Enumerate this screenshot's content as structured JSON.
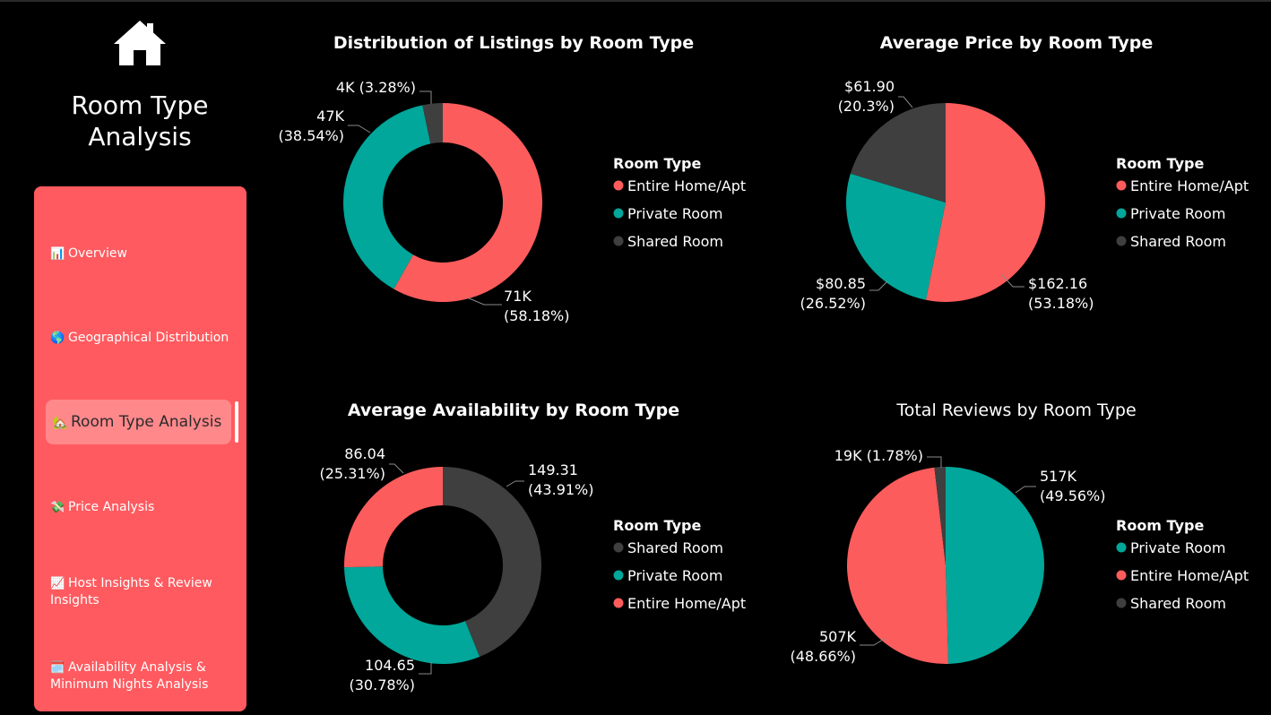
{
  "page": {
    "title": "Room Type Analysis"
  },
  "nav": {
    "items": [
      {
        "icon": "📊",
        "label": "Overview"
      },
      {
        "icon": "🌎",
        "label": "Geographical Distribution"
      },
      {
        "icon": "🏡",
        "label": "Room Type Analysis",
        "active": true
      },
      {
        "icon": "💸",
        "label": "Price Analysis"
      },
      {
        "icon": "📈",
        "label": "Host Insights & Review Insights"
      },
      {
        "icon": "🗓️",
        "label": "Availability Analysis & Minimum Nights Analysis"
      }
    ]
  },
  "colors": {
    "entire": "#fd5c5c",
    "private": "#00a79a",
    "shared": "#3f3f3f"
  },
  "chart_data": [
    {
      "type": "donut",
      "title": "Distribution of Listings by Room Type",
      "legend_title": "Room Type",
      "legend_position": "right",
      "slices": [
        {
          "name": "Entire Home/Apt",
          "value": 71000,
          "label_value": "71K",
          "percent": 58.18
        },
        {
          "name": "Private Room",
          "value": 47000,
          "label_value": "47K",
          "percent": 38.54
        },
        {
          "name": "Shared Room",
          "value": 4000,
          "label_value": "4K",
          "percent": 3.28
        }
      ]
    },
    {
      "type": "pie",
      "title": "Average Price by Room Type",
      "legend_title": "Room Type",
      "legend_position": "right",
      "slices": [
        {
          "name": "Entire Home/Apt",
          "value": 162.16,
          "label_value": "$162.16",
          "percent": 53.18
        },
        {
          "name": "Private Room",
          "value": 80.85,
          "label_value": "$80.85",
          "percent": 26.52
        },
        {
          "name": "Shared Room",
          "value": 61.9,
          "label_value": "$61.90",
          "percent": 20.3,
          "percent_text": "20.3%"
        }
      ]
    },
    {
      "type": "donut",
      "title": "Average Availability by Room Type",
      "legend_title": "Room Type",
      "legend_position": "right",
      "slices": [
        {
          "name": "Shared Room",
          "value": 149.31,
          "label_value": "149.31",
          "percent": 43.91
        },
        {
          "name": "Private Room",
          "value": 104.65,
          "label_value": "104.65",
          "percent": 30.78
        },
        {
          "name": "Entire Home/Apt",
          "value": 86.04,
          "label_value": "86.04",
          "percent": 25.31
        }
      ]
    },
    {
      "type": "pie",
      "title": "Total Reviews by Room Type",
      "legend_title": "Room Type",
      "legend_position": "right",
      "slices": [
        {
          "name": "Private Room",
          "value": 517000,
          "label_value": "517K",
          "percent": 49.56
        },
        {
          "name": "Entire Home/Apt",
          "value": 507000,
          "label_value": "507K",
          "percent": 48.66
        },
        {
          "name": "Shared Room",
          "value": 19000,
          "label_value": "19K",
          "percent": 1.78
        }
      ]
    }
  ]
}
